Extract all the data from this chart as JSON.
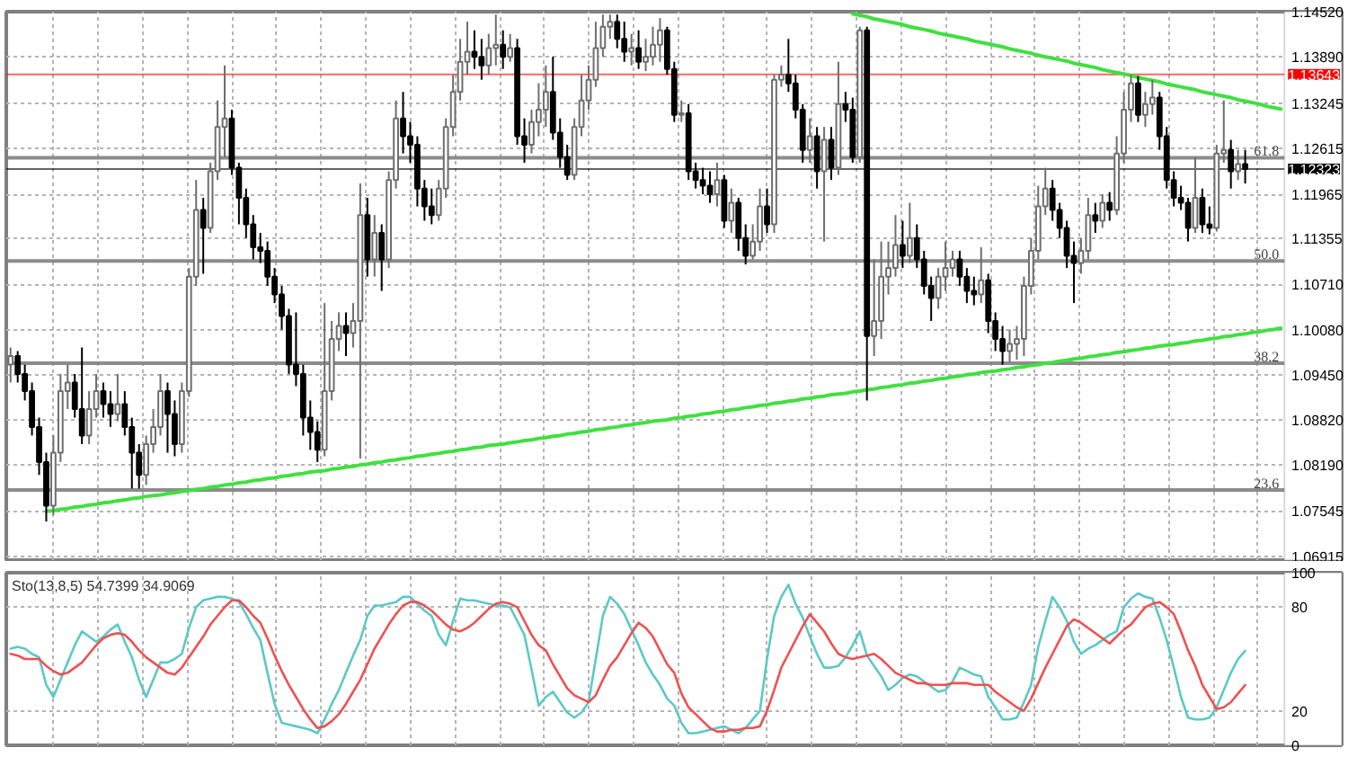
{
  "chart_data": [
    {
      "type": "candlestick",
      "categories": [
        null,
        null,
        null,
        null,
        null,
        null,
        null,
        null,
        null,
        null,
        null,
        null,
        null,
        null,
        null,
        null,
        null,
        null,
        null,
        null,
        null,
        null,
        null,
        null,
        null,
        null,
        null,
        null,
        null,
        null,
        null,
        null,
        null,
        null,
        null,
        null,
        null,
        null,
        null,
        null,
        null,
        null,
        null,
        null,
        null,
        null,
        null,
        null,
        null,
        null,
        null,
        null,
        null,
        null,
        null,
        null,
        null,
        null,
        null,
        null,
        null,
        null,
        null,
        null,
        null,
        null,
        null,
        null,
        null,
        null,
        null,
        null,
        null,
        null,
        null,
        null,
        null,
        null,
        null,
        null,
        null,
        null,
        null,
        null,
        null,
        null,
        null,
        null,
        null,
        null,
        null,
        null,
        null,
        null,
        null,
        null,
        null,
        null,
        null,
        null,
        null,
        null,
        null,
        null,
        null,
        null,
        null,
        null,
        null,
        null,
        null,
        null,
        null,
        null,
        null,
        null,
        null,
        null,
        null,
        null,
        null,
        null,
        null,
        null,
        null,
        null,
        null,
        null,
        null,
        null,
        null,
        null,
        null,
        null,
        null,
        null,
        null,
        null,
        null,
        null,
        null,
        null,
        null,
        null,
        null,
        null,
        null,
        null,
        null,
        null,
        null,
        null,
        null,
        null,
        null,
        null,
        null,
        null,
        null,
        null,
        null,
        null,
        null,
        null,
        null,
        null,
        null,
        null,
        null,
        null,
        null,
        null,
        null,
        null,
        null,
        null,
        null,
        null,
        null
      ],
      "ohlc": [
        [
          1.0959,
          1.0983,
          1.0934,
          1.0971
        ],
        [
          1.0971,
          1.0978,
          1.0934,
          1.0946
        ],
        [
          1.0946,
          1.0959,
          1.0909,
          1.0922
        ],
        [
          1.0922,
          1.0934,
          1.086,
          1.0872
        ],
        [
          1.0872,
          1.0885,
          1.0805,
          1.0823
        ],
        [
          1.0823,
          1.0836,
          1.074,
          1.0762
        ],
        [
          1.0762,
          1.086,
          1.0749,
          1.0836
        ],
        [
          1.0836,
          1.0946,
          1.0823,
          1.0922
        ],
        [
          1.0922,
          1.0959,
          1.0897,
          1.0934
        ],
        [
          1.0934,
          1.0946,
          1.0885,
          1.0897
        ],
        [
          1.0897,
          1.0983,
          1.0848,
          1.086
        ],
        [
          1.086,
          1.0922,
          1.0848,
          1.0897
        ],
        [
          1.0897,
          1.0946,
          1.0885,
          1.0922
        ],
        [
          1.0922,
          1.0934,
          1.0885,
          1.0904
        ],
        [
          1.0904,
          1.0922,
          1.0872,
          1.089
        ],
        [
          1.089,
          1.0946,
          1.088,
          1.0904
        ],
        [
          1.0904,
          1.0922,
          1.086,
          1.0872
        ],
        [
          1.0872,
          1.0885,
          1.0786,
          1.0836
        ],
        [
          1.0836,
          1.0848,
          1.0786,
          1.0805
        ],
        [
          1.0805,
          1.086,
          1.0791,
          1.0848
        ],
        [
          1.0848,
          1.0897,
          1.0836,
          1.0872
        ],
        [
          1.0872,
          1.0946,
          1.086,
          1.0922
        ],
        [
          1.0922,
          1.0934,
          1.0836,
          1.089
        ],
        [
          1.089,
          1.0909,
          1.0831,
          1.0848
        ],
        [
          1.0848,
          1.0934,
          1.0836,
          1.0922
        ],
        [
          1.0922,
          1.1094,
          1.0914,
          1.1082
        ],
        [
          1.1082,
          1.1217,
          1.1069,
          1.1175
        ],
        [
          1.1175,
          1.1192,
          1.1086,
          1.115
        ],
        [
          1.115,
          1.1241,
          1.1143,
          1.1229
        ],
        [
          1.1229,
          1.1328,
          1.1217,
          1.1291
        ],
        [
          1.1291,
          1.1377,
          1.1249,
          1.1303
        ],
        [
          1.1303,
          1.1315,
          1.1224,
          1.1234
        ],
        [
          1.1234,
          1.1241,
          1.1155,
          1.1192
        ],
        [
          1.1192,
          1.1205,
          1.1136,
          1.1155
        ],
        [
          1.1155,
          1.1168,
          1.1106,
          1.1123
        ],
        [
          1.1123,
          1.1143,
          1.1101,
          1.1118
        ],
        [
          1.1118,
          1.1131,
          1.1069,
          1.1082
        ],
        [
          1.1082,
          1.1094,
          1.1045,
          1.1057
        ],
        [
          1.1057,
          1.1069,
          1.1008,
          1.1027
        ],
        [
          1.1027,
          1.1037,
          1.0946,
          1.0959
        ],
        [
          1.0959,
          1.1032,
          1.0929,
          1.0946
        ],
        [
          1.0946,
          1.0959,
          1.086,
          1.0885
        ],
        [
          1.0885,
          1.0909,
          1.084,
          1.0865
        ],
        [
          1.0865,
          1.088,
          1.0823,
          1.084
        ],
        [
          1.084,
          1.1045,
          1.0831,
          1.0922
        ],
        [
          1.0922,
          1.102,
          1.0909,
          1.0995
        ],
        [
          1.0995,
          1.1032,
          1.0978,
          1.1013
        ],
        [
          1.1013,
          1.1032,
          1.0971,
          1.1003
        ],
        [
          1.1003,
          1.1045,
          1.0983,
          1.102
        ],
        [
          1.102,
          1.1212,
          1.0828,
          1.1168
        ],
        [
          1.1168,
          1.1192,
          1.1082,
          1.1106
        ],
        [
          1.1106,
          1.1168,
          1.1082,
          1.1143
        ],
        [
          1.1143,
          1.1155,
          1.1062,
          1.1106
        ],
        [
          1.1106,
          1.1229,
          1.1094,
          1.1217
        ],
        [
          1.1217,
          1.1328,
          1.1205,
          1.1303
        ],
        [
          1.1303,
          1.134,
          1.1254,
          1.1278
        ],
        [
          1.1278,
          1.1298,
          1.1241,
          1.1266
        ],
        [
          1.1266,
          1.1278,
          1.118,
          1.1205
        ],
        [
          1.1205,
          1.1217,
          1.116,
          1.118
        ],
        [
          1.118,
          1.1205,
          1.1155,
          1.1168
        ],
        [
          1.1168,
          1.1217,
          1.116,
          1.1205
        ],
        [
          1.1205,
          1.1303,
          1.1192,
          1.1291
        ],
        [
          1.1291,
          1.1364,
          1.1278,
          1.134
        ],
        [
          1.134,
          1.1414,
          1.1328,
          1.1382
        ],
        [
          1.1382,
          1.1438,
          1.1364,
          1.1396
        ],
        [
          1.1396,
          1.1426,
          1.1372,
          1.1389
        ],
        [
          1.1389,
          1.1414,
          1.1357,
          1.1377
        ],
        [
          1.1377,
          1.1421,
          1.1364,
          1.1401
        ],
        [
          1.1401,
          1.1448,
          1.1377,
          1.1406
        ],
        [
          1.1406,
          1.1426,
          1.1372,
          1.1389
        ],
        [
          1.1389,
          1.1421,
          1.1382,
          1.1401
        ],
        [
          1.1401,
          1.1414,
          1.1266,
          1.1278
        ],
        [
          1.1278,
          1.1303,
          1.1241,
          1.1266
        ],
        [
          1.1266,
          1.1315,
          1.1254,
          1.1298
        ],
        [
          1.1298,
          1.1352,
          1.1278,
          1.1315
        ],
        [
          1.1315,
          1.1377,
          1.1291,
          1.134
        ],
        [
          1.134,
          1.1389,
          1.1273,
          1.1283
        ],
        [
          1.1283,
          1.1303,
          1.1234,
          1.1249
        ],
        [
          1.1249,
          1.1266,
          1.1217,
          1.1224
        ],
        [
          1.1224,
          1.1303,
          1.1217,
          1.1291
        ],
        [
          1.1291,
          1.1364,
          1.1278,
          1.1328
        ],
        [
          1.1328,
          1.1377,
          1.1315,
          1.1357
        ],
        [
          1.1357,
          1.1438,
          1.1347,
          1.1401
        ],
        [
          1.1401,
          1.1448,
          1.1389,
          1.1431
        ],
        [
          1.1431,
          1.1448,
          1.1414,
          1.1438
        ],
        [
          1.1438,
          1.1448,
          1.1401,
          1.1414
        ],
        [
          1.1414,
          1.1438,
          1.1382,
          1.1396
        ],
        [
          1.1396,
          1.1421,
          1.1377,
          1.1401
        ],
        [
          1.1401,
          1.1426,
          1.1372,
          1.1382
        ],
        [
          1.1382,
          1.1414,
          1.1369,
          1.1389
        ],
        [
          1.1389,
          1.1431,
          1.1377,
          1.1406
        ],
        [
          1.1406,
          1.1443,
          1.1382,
          1.1426
        ],
        [
          1.1426,
          1.1431,
          1.1364,
          1.1372
        ],
        [
          1.1372,
          1.1382,
          1.1298,
          1.1308
        ],
        [
          1.1308,
          1.1328,
          1.1298,
          1.131
        ],
        [
          1.131,
          1.1323,
          1.1217,
          1.1229
        ],
        [
          1.1229,
          1.1241,
          1.1205,
          1.1217
        ],
        [
          1.1217,
          1.1234,
          1.1197,
          1.1209
        ],
        [
          1.1209,
          1.1229,
          1.1185,
          1.1197
        ],
        [
          1.1197,
          1.1241,
          1.118,
          1.1217
        ],
        [
          1.1217,
          1.1224,
          1.115,
          1.116
        ],
        [
          1.116,
          1.1205,
          1.1143,
          1.1185
        ],
        [
          1.1185,
          1.1192,
          1.1118,
          1.1136
        ],
        [
          1.1136,
          1.1155,
          1.1099,
          1.1111
        ],
        [
          1.1111,
          1.1155,
          1.1106,
          1.1131
        ],
        [
          1.1131,
          1.1205,
          1.1118,
          1.118
        ],
        [
          1.118,
          1.1205,
          1.1143,
          1.1155
        ],
        [
          1.1155,
          1.1364,
          1.1143,
          1.1357
        ],
        [
          1.1357,
          1.1377,
          1.1347,
          1.1364
        ],
        [
          1.1364,
          1.1414,
          1.134,
          1.1352
        ],
        [
          1.1352,
          1.1364,
          1.1303,
          1.1315
        ],
        [
          1.1315,
          1.1323,
          1.1241,
          1.1259
        ],
        [
          1.1259,
          1.1303,
          1.1241,
          1.1278
        ],
        [
          1.1278,
          1.1291,
          1.1205,
          1.1229
        ],
        [
          1.1229,
          1.1291,
          1.1131,
          1.1273
        ],
        [
          1.1273,
          1.1291,
          1.1217,
          1.1234
        ],
        [
          1.1234,
          1.1382,
          1.1224,
          1.1323
        ],
        [
          1.1323,
          1.134,
          1.1298,
          1.1315
        ],
        [
          1.1315,
          1.1332,
          1.1241,
          1.1249
        ],
        [
          1.1249,
          1.1431,
          1.1241,
          1.1426
        ],
        [
          1.1426,
          1.1431,
          1.0909,
          1.0999
        ],
        [
          1.0999,
          1.1106,
          1.0971,
          1.102
        ],
        [
          1.102,
          1.1131,
          1.0995,
          1.1082
        ],
        [
          1.1082,
          1.1131,
          1.1057,
          1.1094
        ],
        [
          1.1094,
          1.1168,
          1.1082,
          1.1126
        ],
        [
          1.1126,
          1.116,
          1.1094,
          1.1111
        ],
        [
          1.1111,
          1.1185,
          1.1101,
          1.1136
        ],
        [
          1.1136,
          1.1155,
          1.1094,
          1.1106
        ],
        [
          1.1106,
          1.1118,
          1.1057,
          1.1069
        ],
        [
          1.1069,
          1.1082,
          1.102,
          1.1052
        ],
        [
          1.1052,
          1.1094,
          1.1037,
          1.1082
        ],
        [
          1.1082,
          1.1131,
          1.1062,
          1.1094
        ],
        [
          1.1094,
          1.1118,
          1.1082,
          1.1106
        ],
        [
          1.1106,
          1.1118,
          1.1069,
          1.1082
        ],
        [
          1.1082,
          1.1094,
          1.1045,
          1.1062
        ],
        [
          1.1062,
          1.1082,
          1.1042,
          1.1057
        ],
        [
          1.1057,
          1.1123,
          1.1045,
          1.1077
        ],
        [
          1.1077,
          1.1086,
          1.1003,
          1.102
        ],
        [
          1.102,
          1.1032,
          1.0978,
          1.0995
        ],
        [
          1.0995,
          1.1013,
          1.0959,
          1.0978
        ],
        [
          1.0978,
          1.1008,
          1.0963,
          1.0988
        ],
        [
          1.0988,
          1.1013,
          1.0966,
          1.0995
        ],
        [
          1.0995,
          1.1082,
          1.0971,
          1.1069
        ],
        [
          1.1069,
          1.1136,
          1.1057,
          1.1118
        ],
        [
          1.1118,
          1.1209,
          1.1106,
          1.118
        ],
        [
          1.118,
          1.1234,
          1.1168,
          1.1205
        ],
        [
          1.1205,
          1.1217,
          1.116,
          1.1175
        ],
        [
          1.1175,
          1.1185,
          1.1136,
          1.115
        ],
        [
          1.115,
          1.116,
          1.1094,
          1.1111
        ],
        [
          1.1111,
          1.1131,
          1.1045,
          1.1101
        ],
        [
          1.1101,
          1.1136,
          1.1086,
          1.1118
        ],
        [
          1.1118,
          1.1192,
          1.1106,
          1.1168
        ],
        [
          1.1168,
          1.1185,
          1.1143,
          1.116
        ],
        [
          1.116,
          1.1197,
          1.115,
          1.1185
        ],
        [
          1.1185,
          1.12,
          1.116,
          1.1175
        ],
        [
          1.1175,
          1.1278,
          1.1168,
          1.1254
        ],
        [
          1.1254,
          1.134,
          1.1241,
          1.1315
        ],
        [
          1.1315,
          1.1364,
          1.1298,
          1.1352
        ],
        [
          1.1352,
          1.1362,
          1.1298,
          1.1308
        ],
        [
          1.1308,
          1.134,
          1.1291,
          1.1323
        ],
        [
          1.1323,
          1.1357,
          1.1308,
          1.1332
        ],
        [
          1.1332,
          1.134,
          1.1259,
          1.1278
        ],
        [
          1.1278,
          1.1291,
          1.1205,
          1.1217
        ],
        [
          1.1217,
          1.1229,
          1.118,
          1.1192
        ],
        [
          1.1192,
          1.1209,
          1.1175,
          1.1185
        ],
        [
          1.1185,
          1.1192,
          1.1131,
          1.115
        ],
        [
          1.115,
          1.1249,
          1.1143,
          1.1192
        ],
        [
          1.1192,
          1.1205,
          1.1143,
          1.1155
        ],
        [
          1.1155,
          1.118,
          1.1141,
          1.115
        ],
        [
          1.115,
          1.1266,
          1.1145,
          1.1254
        ],
        [
          1.1254,
          1.1328,
          1.1241,
          1.1259
        ],
        [
          1.1259,
          1.1273,
          1.1205,
          1.1229
        ],
        [
          1.1229,
          1.1259,
          1.1217,
          1.1239
        ],
        [
          1.1239,
          1.1259,
          1.1212,
          1.12323
        ],
        null,
        null,
        null,
        null,
        null
      ],
      "series": [
        {
          "type": "line",
          "color": "#40e040",
          "values": [
            null,
            null,
            null,
            null,
            null,
            null,
            null,
            null,
            null,
            null,
            null,
            null,
            null,
            null,
            null,
            null,
            null,
            null,
            null,
            null,
            null,
            null,
            null,
            null,
            null,
            null,
            null,
            null,
            null,
            null,
            null,
            null,
            null,
            null,
            null,
            null,
            null,
            null,
            null,
            null,
            null,
            null,
            null,
            null,
            null,
            null,
            null,
            null,
            null,
            null,
            null,
            null,
            null,
            null,
            null,
            null,
            null,
            null,
            null,
            null,
            null,
            null,
            null,
            null,
            null,
            null,
            null,
            null,
            null,
            null,
            null,
            null,
            null,
            null,
            null,
            null,
            null,
            null,
            null,
            null,
            null,
            null,
            null,
            null,
            null,
            null,
            null,
            null,
            null,
            null,
            null,
            null,
            null,
            null,
            null,
            null,
            null,
            null,
            null,
            null,
            null,
            null,
            null,
            null,
            null,
            null,
            null,
            null,
            null,
            null,
            null,
            null,
            null,
            null,
            null,
            null,
            null,
            null,
            1.1449,
            1.1447,
            1.1445,
            1.1442,
            1.144,
            1.1438,
            1.1436,
            1.1434,
            1.1431,
            1.1429,
            1.1427,
            1.1425,
            1.1422,
            1.142,
            1.1418,
            1.1416,
            1.1414,
            1.1411,
            1.1409,
            1.1407,
            1.1405,
            1.1403,
            1.14,
            1.1398,
            1.1396,
            1.1394,
            1.1391,
            1.1389,
            1.1387,
            1.1385,
            1.1383,
            1.138,
            1.1378,
            1.1376,
            1.1374,
            1.1371,
            1.1369,
            1.1367,
            1.1365,
            1.1363,
            1.136,
            1.1358,
            1.1356,
            1.1354,
            1.1351,
            1.1349,
            1.1347,
            1.1345,
            1.1343,
            1.134,
            1.1338,
            1.1336,
            1.1334,
            1.1332,
            1.1329,
            1.1327,
            1.1325,
            1.1323,
            1.132,
            1.1318,
            1.1316
          ]
        },
        {
          "type": "line",
          "color": "#40e040",
          "values": [
            null,
            null,
            null,
            null,
            null,
            1.0754,
            1.0755,
            1.0757,
            1.0758,
            1.076,
            1.0761,
            1.0763,
            1.0764,
            1.0766,
            1.0767,
            1.0769,
            1.077,
            1.0772,
            1.0773,
            1.0775,
            1.0776,
            1.0777,
            1.0779,
            1.078,
            1.0782,
            1.0783,
            1.0785,
            1.0786,
            1.0788,
            1.0789,
            1.0791,
            1.0792,
            1.0794,
            1.0795,
            1.0797,
            1.0798,
            1.08,
            1.0801,
            1.0803,
            1.0804,
            1.0806,
            1.0807,
            1.0809,
            1.081,
            1.0811,
            1.0813,
            1.0814,
            1.0816,
            1.0817,
            1.0819,
            1.082,
            1.0822,
            1.0823,
            1.0825,
            1.0826,
            1.0828,
            1.0829,
            1.0831,
            1.0832,
            1.0834,
            1.0835,
            1.0837,
            1.0838,
            1.084,
            1.0841,
            1.0843,
            1.0844,
            1.0846,
            1.0847,
            1.0848,
            1.085,
            1.0851,
            1.0853,
            1.0854,
            1.0856,
            1.0857,
            1.0859,
            1.086,
            1.0862,
            1.0863,
            1.0865,
            1.0866,
            1.0868,
            1.0869,
            1.0871,
            1.0872,
            1.0874,
            1.0875,
            1.0877,
            1.0878,
            1.088,
            1.0881,
            1.0882,
            1.0884,
            1.0885,
            1.0887,
            1.0888,
            1.089,
            1.0891,
            1.0893,
            1.0894,
            1.0896,
            1.0897,
            1.0899,
            1.09,
            1.0902,
            1.0903,
            1.0905,
            1.0906,
            1.0908,
            1.0909,
            1.0911,
            1.0912,
            1.0914,
            1.0915,
            1.0917,
            1.0918,
            1.0919,
            1.0921,
            1.0922,
            1.0924,
            1.0925,
            1.0927,
            1.0928,
            1.093,
            1.0931,
            1.0933,
            1.0934,
            1.0936,
            1.0937,
            1.0939,
            1.094,
            1.0942,
            1.0943,
            1.0945,
            1.0946,
            1.0948,
            1.0949,
            1.095,
            1.0952,
            1.0953,
            1.0955,
            1.0956,
            1.0958,
            1.0959,
            1.0961,
            1.0962,
            1.0964,
            1.0965,
            1.0967,
            1.0968,
            1.097,
            1.0971,
            1.0973,
            1.0974,
            1.0976,
            1.0977,
            1.0979,
            1.098,
            1.0982,
            1.0983,
            1.0985,
            1.0986,
            1.0987,
            1.0989,
            1.099,
            1.0992,
            1.0993,
            1.0995,
            1.0996,
            1.0998,
            1.0999,
            1.1001,
            1.1002,
            1.1004,
            1.1005,
            1.1007,
            1.1008,
            1.101
          ]
        }
      ],
      "ylim": [
        1.0686,
        1.1452
      ],
      "yticks": [
        {
          "value": 1.1452,
          "label": "1.14520"
        },
        {
          "value": 1.1389,
          "label": "1.13890"
        },
        1.13245,
        1.12615,
        1.11965,
        1.11355,
        {
          "value": 1.1071,
          "label": "1.10710"
        },
        {
          "value": 1.1008,
          "label": "1.10080"
        },
        {
          "value": 1.0945,
          "label": "1.09450"
        },
        {
          "value": 1.0882,
          "label": "1.08820"
        },
        {
          "value": 1.0819,
          "label": "1.08190"
        },
        1.07545,
        1.06915
      ],
      "ref_lines": [
        {
          "axis": "y",
          "value": 1.1248,
          "color": "#808080"
        },
        {
          "axis": "y",
          "value": 1.1104,
          "color": "#808080"
        },
        {
          "axis": "y",
          "value": 1.0961,
          "color": "#808080"
        },
        {
          "axis": "y",
          "value": 1.0784,
          "color": "#808080"
        },
        {
          "axis": "y",
          "value": 1.13643,
          "label": "1.13643",
          "color": "#ff0000"
        },
        {
          "axis": "y",
          "value": 1.12323,
          "label": "1.12323",
          "color": "#000000"
        }
      ],
      "annotations": [
        {
          "text": "61.8",
          "y": 1.1248
        },
        {
          "text": "50.0",
          "y": 1.1104
        },
        {
          "text": "38.2",
          "y": 1.0961
        },
        {
          "text": "23.6",
          "y": 1.0784
        }
      ],
      "grid": true,
      "tick_labels": "y"
    },
    {
      "type": "line",
      "title": "Sto(13,8,5) 54.7399 34.9069",
      "categories": [
        null,
        null,
        null,
        null,
        null,
        null,
        null,
        null,
        null,
        null,
        null,
        null,
        null,
        null,
        null,
        null,
        null,
        null,
        null,
        null,
        null,
        null,
        null,
        null,
        null,
        null,
        null,
        null,
        null,
        null,
        null,
        null,
        null,
        null,
        null,
        null,
        null,
        null,
        null,
        null,
        null,
        null,
        null,
        null,
        null,
        null,
        null,
        null,
        null,
        null,
        null,
        null,
        null,
        null,
        null,
        null,
        null,
        null,
        null,
        null,
        null,
        null,
        null,
        null,
        null,
        null,
        null,
        null,
        null,
        null,
        null,
        null,
        null,
        null,
        null,
        null,
        null,
        null,
        null,
        null,
        null,
        null,
        null,
        null,
        null,
        null,
        null,
        null,
        null,
        null,
        null,
        null,
        null,
        null,
        null,
        null,
        null,
        null,
        null,
        null,
        null,
        null,
        null,
        null,
        null,
        null,
        null,
        null,
        null,
        null,
        null,
        null,
        null,
        null,
        null,
        null,
        null,
        null,
        null,
        null,
        null,
        null,
        null,
        null,
        null,
        null,
        null,
        null,
        null,
        null,
        null,
        null,
        null,
        null,
        null,
        null,
        null,
        null,
        null,
        null,
        null,
        null,
        null,
        null,
        null,
        null,
        null,
        null,
        null,
        null,
        null,
        null,
        null,
        null,
        null,
        null,
        null,
        null,
        null,
        null,
        null,
        null,
        null,
        null,
        null,
        null,
        null,
        null,
        null,
        null,
        null,
        null,
        null,
        null,
        null,
        null,
        null,
        null,
        null
      ],
      "series": [
        {
          "color": "#5cc8c8",
          "values": [
            56,
            57,
            56,
            53,
            51,
            35,
            28,
            38,
            48,
            58,
            66,
            63,
            60,
            63,
            67,
            70,
            60,
            51,
            38,
            28,
            38,
            48,
            48,
            50,
            53,
            68,
            80,
            84,
            85,
            86,
            86,
            85,
            83,
            76,
            68,
            61,
            42,
            24,
            13,
            12,
            11,
            10,
            9,
            7,
            15,
            24,
            32,
            42,
            52,
            61,
            75,
            81,
            81,
            82,
            83,
            86,
            86,
            82,
            78,
            75,
            64,
            58,
            72,
            85,
            84,
            84,
            83,
            82,
            81,
            81,
            80,
            72,
            64,
            44,
            23,
            28,
            31,
            25,
            19,
            16,
            19,
            25,
            50,
            75,
            86,
            82,
            76,
            67,
            58,
            48,
            41,
            35,
            27,
            23,
            13,
            7,
            7,
            8,
            9,
            10,
            11,
            9,
            7,
            10,
            15,
            20,
            50,
            75,
            86,
            93,
            82,
            74,
            63,
            53,
            45,
            45,
            46,
            51,
            58,
            66,
            52,
            46,
            40,
            32,
            35,
            39,
            41,
            40,
            37,
            34,
            31,
            32,
            37,
            45,
            43,
            41,
            40,
            28,
            22,
            15,
            15,
            16,
            25,
            35,
            57,
            72,
            86,
            80,
            72,
            60,
            53,
            56,
            58,
            61,
            64,
            66,
            80,
            85,
            88,
            86,
            85,
            74,
            61,
            45,
            28,
            16,
            15,
            15,
            16,
            22,
            32,
            42,
            50,
            54.7399,
            null,
            null,
            null,
            null,
            null
          ]
        },
        {
          "color": "#f05050",
          "values": [
            53,
            52,
            50,
            50,
            50,
            46,
            43,
            41,
            42,
            45,
            48,
            53,
            58,
            62,
            64,
            65,
            64,
            60,
            55,
            51,
            48,
            45,
            42,
            41,
            45,
            51,
            57,
            63,
            70,
            75,
            80,
            84,
            84,
            80,
            75,
            71,
            62,
            52,
            43,
            35,
            28,
            21,
            15,
            10,
            11,
            14,
            18,
            24,
            31,
            38,
            47,
            56,
            63,
            70,
            76,
            81,
            83,
            83,
            81,
            78,
            74,
            70,
            67,
            66,
            68,
            71,
            75,
            79,
            82,
            83,
            82,
            80,
            72,
            64,
            58,
            55,
            47,
            40,
            33,
            29,
            27,
            25,
            29,
            38,
            46,
            51,
            58,
            65,
            71,
            68,
            63,
            55,
            47,
            42,
            30,
            22,
            18,
            14,
            10,
            8,
            8,
            9,
            9,
            10,
            10,
            11,
            20,
            32,
            45,
            53,
            61,
            69,
            76,
            71,
            66,
            59,
            53,
            51,
            50,
            51,
            52,
            53,
            50,
            46,
            42,
            40,
            38,
            36,
            36,
            35,
            35,
            35,
            36,
            36,
            36,
            35,
            35,
            35,
            31,
            28,
            25,
            22,
            20,
            27,
            36,
            45,
            53,
            61,
            69,
            73,
            71,
            68,
            65,
            62,
            59,
            63,
            67,
            70,
            75,
            80,
            82,
            83,
            80,
            76,
            66,
            55,
            46,
            35,
            28,
            21,
            22,
            25,
            30,
            34.9069,
            null,
            null,
            null,
            null,
            null
          ]
        }
      ],
      "ylim": [
        0,
        100
      ],
      "yticks": [
        0,
        20,
        80,
        100
      ],
      "grid": true,
      "tick_labels": "y"
    }
  ]
}
